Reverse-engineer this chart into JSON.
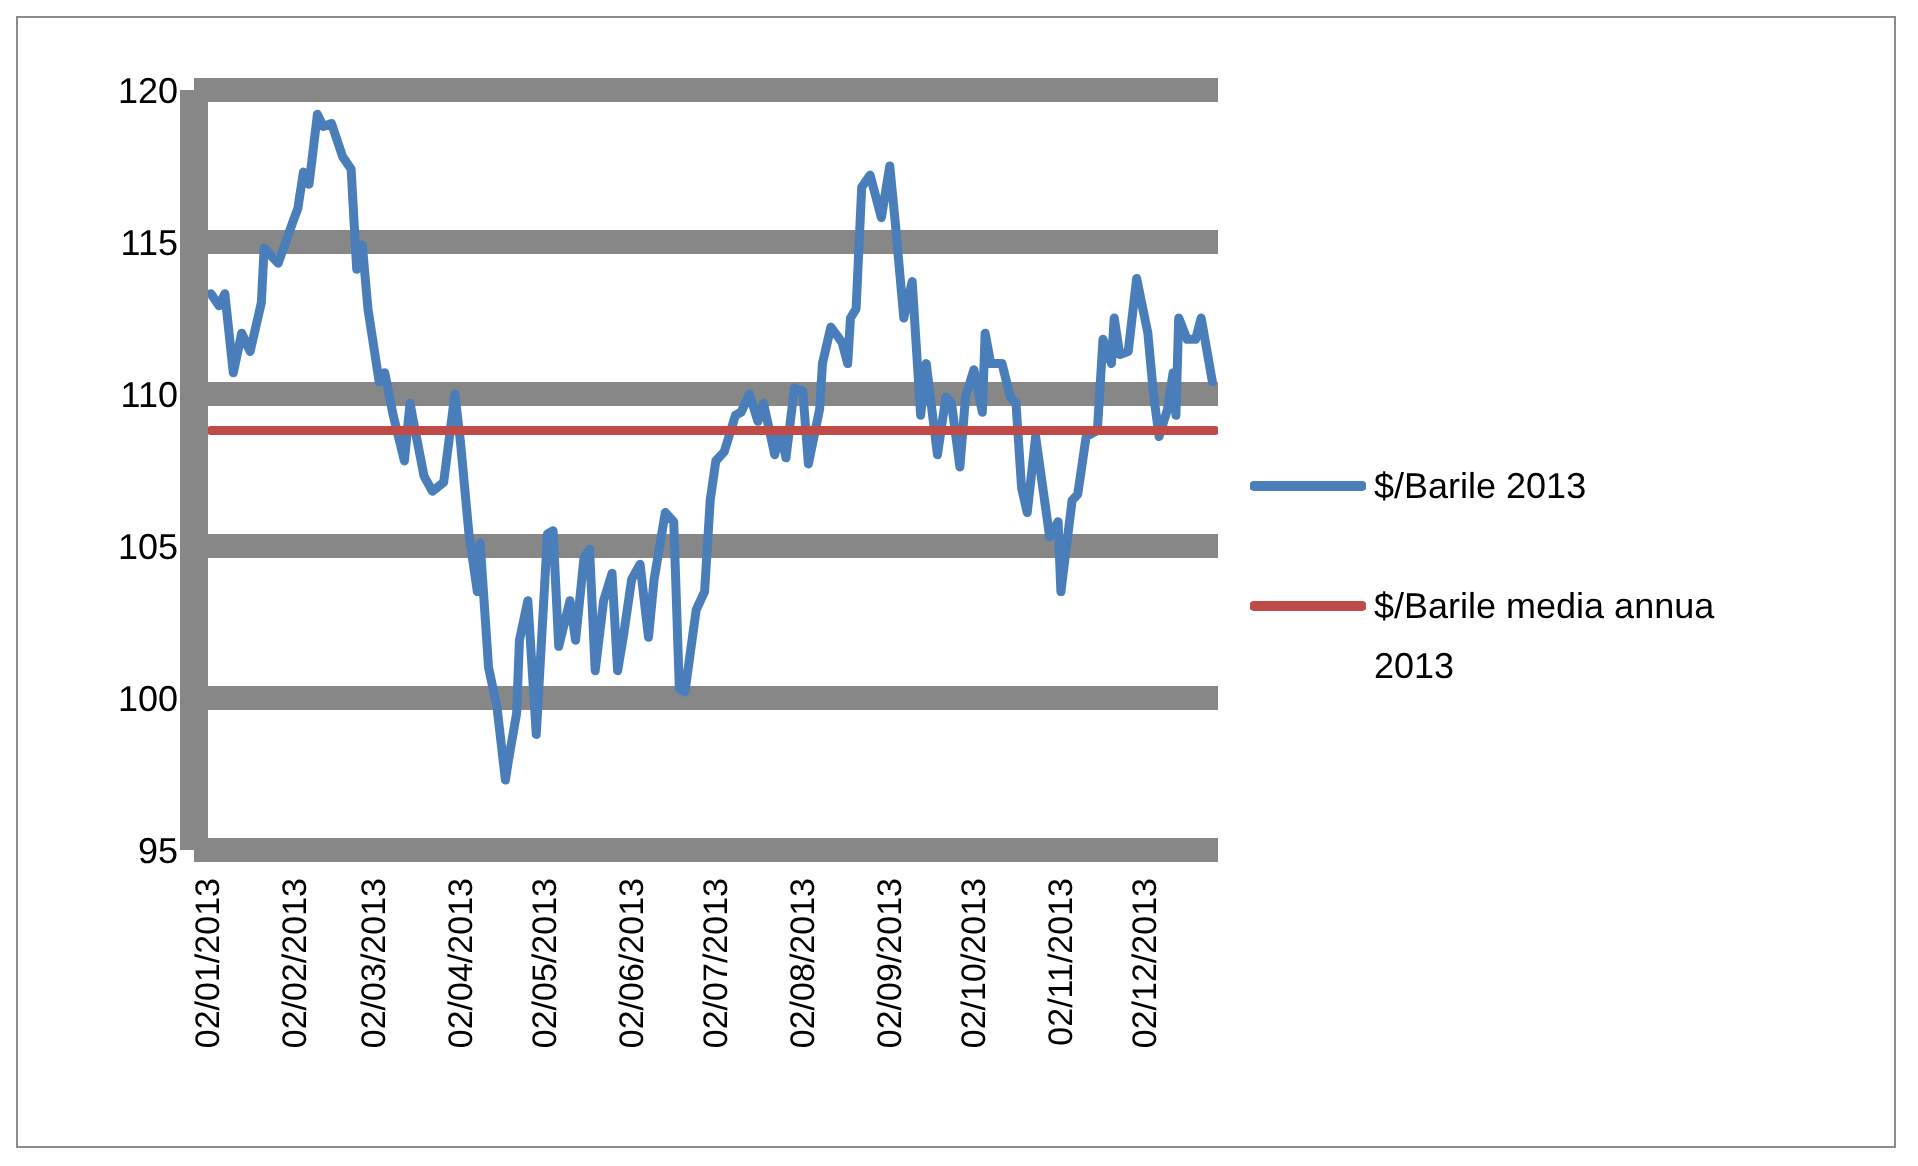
{
  "chart_data": {
    "type": "line",
    "grid": "y",
    "legend": "right",
    "marker": "none",
    "line_style": "solid",
    "xlim": [
      "2012-12-28",
      "2013-12-28"
    ],
    "xticks": [
      {
        "value": "2013-01-02",
        "label": "02/01/2013"
      },
      {
        "value": "2013-02-02",
        "label": "02/02/2013"
      },
      {
        "value": "2013-03-02",
        "label": "02/03/2013"
      },
      {
        "value": "2013-04-02",
        "label": "02/04/2013"
      },
      {
        "value": "2013-05-02",
        "label": "02/05/2013"
      },
      {
        "value": "2013-06-02",
        "label": "02/06/2013"
      },
      {
        "value": "2013-07-02",
        "label": "02/07/2013"
      },
      {
        "value": "2013-08-02",
        "label": "02/08/2013"
      },
      {
        "value": "2013-09-02",
        "label": "02/09/2013"
      },
      {
        "value": "2013-10-02",
        "label": "02/10/2013"
      },
      {
        "value": "2013-11-02",
        "label": "02/11/2013"
      },
      {
        "value": "2013-12-02",
        "label": "02/12/2013"
      }
    ],
    "ylim": [
      95,
      120
    ],
    "yticks": [
      95,
      100,
      105,
      110,
      115,
      120
    ],
    "series": [
      {
        "name": "$/Barile 2013",
        "color": "#4a7ebb",
        "x": [
          "2013-01-03",
          "2013-01-06",
          "2013-01-08",
          "2013-01-11",
          "2013-01-14",
          "2013-01-17",
          "2013-01-21",
          "2013-01-22",
          "2013-01-27",
          "2013-02-01",
          "2013-02-03",
          "2013-02-05",
          "2013-02-07",
          "2013-02-10",
          "2013-02-12",
          "2013-02-15",
          "2013-02-19",
          "2013-02-22",
          "2013-02-24",
          "2013-02-26",
          "2013-02-28",
          "2013-03-04",
          "2013-03-06",
          "2013-03-09",
          "2013-03-13",
          "2013-03-15",
          "2013-03-16",
          "2013-03-20",
          "2013-03-23",
          "2013-03-27",
          "2013-03-31",
          "2013-04-02",
          "2013-04-05",
          "2013-04-08",
          "2013-04-09",
          "2013-04-12",
          "2013-04-15",
          "2013-04-18",
          "2013-04-19",
          "2013-04-22",
          "2013-04-23",
          "2013-04-26",
          "2013-04-29",
          "2013-05-03",
          "2013-05-05",
          "2013-05-07",
          "2013-05-11",
          "2013-05-13",
          "2013-05-16",
          "2013-05-18",
          "2013-05-20",
          "2013-05-23",
          "2013-05-26",
          "2013-05-28",
          "2013-05-30",
          "2013-06-02",
          "2013-06-05",
          "2013-06-08",
          "2013-06-10",
          "2013-06-14",
          "2013-06-17",
          "2013-06-19",
          "2013-06-21",
          "2013-06-25",
          "2013-06-28",
          "2013-06-30",
          "2013-07-02",
          "2013-07-05",
          "2013-07-09",
          "2013-07-11",
          "2013-07-14",
          "2013-07-17",
          "2013-07-19",
          "2013-07-23",
          "2013-07-25",
          "2013-07-27",
          "2013-07-30",
          "2013-08-02",
          "2013-08-04",
          "2013-08-08",
          "2013-08-09",
          "2013-08-12",
          "2013-08-16",
          "2013-08-18",
          "2013-08-19",
          "2013-08-21",
          "2013-08-23",
          "2013-08-26",
          "2013-08-30",
          "2013-09-02",
          "2013-09-04",
          "2013-09-07",
          "2013-09-10",
          "2013-09-13",
          "2013-09-15",
          "2013-09-19",
          "2013-09-22",
          "2013-09-24",
          "2013-09-27",
          "2013-09-29",
          "2013-10-02",
          "2013-10-05",
          "2013-10-06",
          "2013-10-08",
          "2013-10-12",
          "2013-10-15",
          "2013-10-17",
          "2013-10-19",
          "2013-10-21",
          "2013-10-24",
          "2013-10-29",
          "2013-11-01",
          "2013-11-02",
          "2013-11-06",
          "2013-11-08",
          "2013-11-11",
          "2013-11-15",
          "2013-11-17",
          "2013-11-20",
          "2013-11-21",
          "2013-11-23",
          "2013-11-26",
          "2013-11-29",
          "2013-12-03",
          "2013-12-05",
          "2013-12-07",
          "2013-12-10",
          "2013-12-12",
          "2013-12-13",
          "2013-12-14",
          "2013-12-17",
          "2013-12-20",
          "2013-12-22",
          "2013-12-26"
        ],
        "values": [
          113.3,
          112.9,
          113.3,
          110.7,
          112.0,
          111.4,
          113.0,
          114.8,
          114.3,
          115.6,
          116.1,
          117.3,
          116.9,
          119.2,
          118.8,
          118.9,
          117.8,
          117.4,
          114.1,
          114.9,
          112.8,
          110.4,
          110.7,
          109.3,
          107.8,
          109.7,
          109.2,
          107.3,
          106.8,
          107.1,
          110.0,
          108.4,
          105.4,
          103.5,
          105.1,
          101.0,
          99.7,
          97.3,
          97.9,
          99.5,
          101.9,
          103.2,
          98.8,
          105.4,
          105.5,
          101.7,
          103.2,
          101.9,
          104.6,
          104.9,
          100.9,
          103.2,
          104.1,
          100.9,
          102.0,
          103.9,
          104.4,
          102.0,
          103.9,
          106.1,
          105.8,
          100.3,
          100.2,
          102.9,
          103.5,
          106.5,
          107.8,
          108.1,
          109.3,
          109.4,
          110.0,
          109.1,
          109.7,
          108.0,
          108.8,
          107.9,
          110.2,
          110.1,
          107.7,
          109.5,
          111.0,
          112.2,
          111.7,
          111.0,
          112.5,
          112.8,
          116.8,
          117.2,
          115.8,
          117.5,
          115.6,
          112.5,
          113.7,
          109.3,
          111.0,
          108.0,
          109.9,
          109.7,
          107.6,
          109.9,
          110.8,
          109.4,
          112.0,
          111.0,
          111.0,
          109.9,
          109.7,
          106.9,
          106.1,
          108.6,
          105.3,
          105.8,
          103.5,
          106.5,
          106.7,
          108.6,
          108.8,
          111.8,
          111.0,
          112.5,
          111.3,
          111.4,
          113.8,
          112.0,
          110.0,
          108.6,
          109.5,
          110.7,
          109.3,
          112.5,
          111.8,
          111.8,
          112.5,
          110.4
        ]
      },
      {
        "name": "$/Barile media annua 2013",
        "color": "#be4b48",
        "x": [
          "2013-01-03",
          "2013-12-27"
        ],
        "values": [
          108.8,
          108.8
        ]
      }
    ]
  }
}
